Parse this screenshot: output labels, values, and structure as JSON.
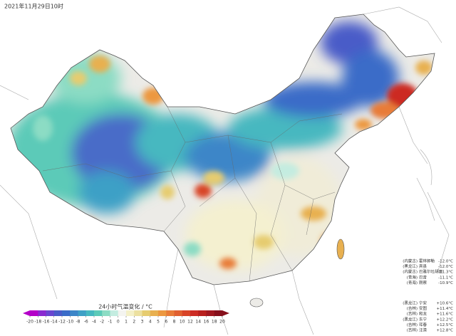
{
  "header": {
    "title": "2021年11月29日10时"
  },
  "colorbar": {
    "label": "24小时气温变化 / °C",
    "ticks": [
      -20,
      -18,
      -16,
      -14,
      -12,
      -10,
      -8,
      -6,
      -4,
      -2,
      -1,
      0,
      1,
      2,
      3,
      4,
      5,
      6,
      8,
      10,
      12,
      14,
      16,
      18,
      20
    ],
    "colors": [
      "#b400c8",
      "#8a2ad0",
      "#6a46d0",
      "#4a5cc8",
      "#3a6cc8",
      "#3c86c8",
      "#3ea0c6",
      "#46b8c0",
      "#5ccab8",
      "#8cdcc4",
      "#c4ece0",
      "#f4f4f0",
      "#f4f0c8",
      "#ece0a0",
      "#e6cc70",
      "#e8b050",
      "#ec9840",
      "#e87c38",
      "#e06030",
      "#d84428",
      "#cc2c24",
      "#b8201e",
      "#a01820",
      "#86101c"
    ]
  },
  "stations_drop": [
    {
      "region": "(内蒙古)",
      "name": "霍林郭勒",
      "change": "-12.0°C"
    },
    {
      "region": "(黑龙江)",
      "name": "宾县",
      "change": "-12.0°C"
    },
    {
      "region": "(内蒙古)",
      "name": "巴雅尔吐胡硕",
      "change": "-11.3°C"
    },
    {
      "region": "(青海)",
      "name": "巴音",
      "change": "-11.1°C"
    },
    {
      "region": "(青海)",
      "name": "刚察",
      "change": "-10.9°C"
    }
  ],
  "stations_rise": [
    {
      "region": "(黑龙江)",
      "name": "宁安",
      "change": "+10.6°C"
    },
    {
      "region": "(吉林)",
      "name": "安图",
      "change": "+11.4°C"
    },
    {
      "region": "(吉林)",
      "name": "和龙",
      "change": "+11.6°C"
    },
    {
      "region": "(黑龙江)",
      "name": "东宁",
      "change": "+12.2°C"
    },
    {
      "region": "(吉林)",
      "name": "珲春",
      "change": "+12.5°C"
    },
    {
      "region": "(吉林)",
      "name": "汪清",
      "change": "+12.8°C"
    }
  ]
}
